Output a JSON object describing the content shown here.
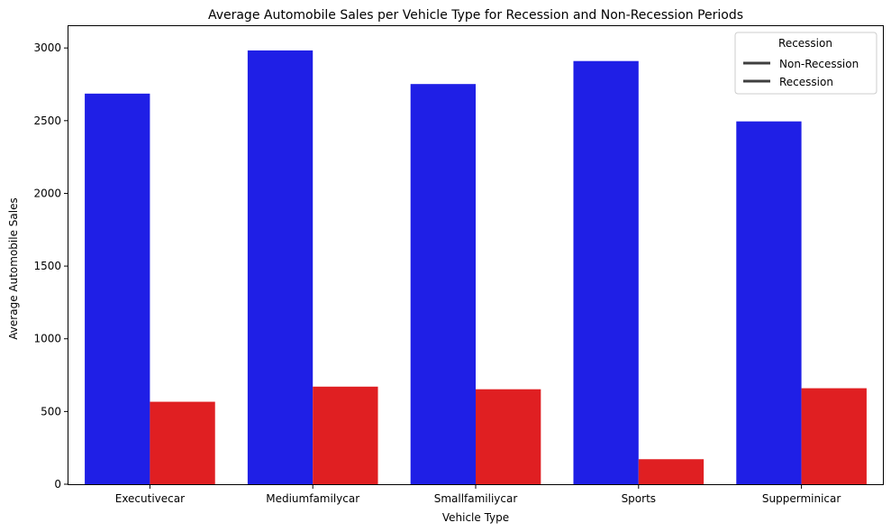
{
  "chart_data": {
    "type": "bar",
    "title": "Average Automobile Sales per Vehicle Type for Recession and Non-Recession Periods",
    "xlabel": "Vehicle Type",
    "ylabel": "Average Automobile Sales",
    "categories": [
      "Executivecar",
      "Mediumfamilycar",
      "Smallfamiliycar",
      "Sports",
      "Supperminicar"
    ],
    "series": [
      {
        "name": "Non-Recession",
        "color": "#1f1fe6",
        "values": [
          2686,
          2983,
          2752,
          2910,
          2495
        ]
      },
      {
        "name": "Recession",
        "color": "#e01f22",
        "values": [
          567,
          671,
          653,
          172,
          660
        ]
      }
    ],
    "ylim": [
      0,
      3150
    ],
    "yticks": [
      0,
      500,
      1000,
      1500,
      2000,
      2500,
      3000
    ],
    "legend": {
      "title": "Recession",
      "placement": "top-right",
      "line_color": "#3f3f3f"
    },
    "grid": false
  }
}
